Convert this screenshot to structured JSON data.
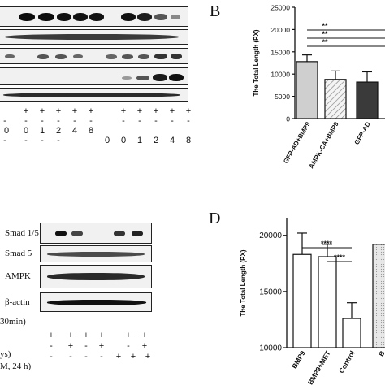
{
  "panel_letters": {
    "b": "B",
    "d": "D"
  },
  "panel_a": {
    "row_signs": [
      "+",
      "+",
      "+",
      "+",
      "+",
      "+",
      "+",
      "+",
      "+",
      "+"
    ],
    "row_dashes": [
      "-",
      "-",
      "-",
      "-",
      "-",
      "-",
      "-",
      "-",
      "-",
      "-",
      "-",
      "-",
      "-",
      "-",
      "-"
    ],
    "times": [
      "0",
      "0",
      "1",
      "2",
      "4",
      "8",
      "0",
      "0",
      "1",
      "2",
      "4",
      "8"
    ]
  },
  "panel_c": {
    "labels": [
      "Smad 1/5",
      "Smad 5",
      "AMPK",
      "β-actin"
    ],
    "conditions": [
      "30min)",
      "ys)",
      "M, 24 h)"
    ],
    "row1": [
      "+",
      "+",
      "+",
      "+",
      "+",
      "+"
    ],
    "row2": [
      "-",
      "+",
      "-",
      "+",
      "-",
      "+"
    ],
    "row3": [
      "-",
      "-",
      "-",
      "-",
      "+",
      "+",
      "+"
    ]
  },
  "chart_data": [
    {
      "type": "bar",
      "ylabel": "The Total Length (PX)",
      "categories": [
        "GFP-AD+BMP9",
        "AMPK-CA+BMP9",
        "GFP-AD"
      ],
      "values": [
        12800,
        8800,
        8200
      ],
      "errors": [
        1500,
        1900,
        2300
      ],
      "ylim": [
        0,
        25000
      ],
      "yticks": [
        "0",
        "5000",
        "10000",
        "15000",
        "20000",
        "25000"
      ],
      "significance": [
        "**",
        "**",
        "**"
      ]
    },
    {
      "type": "bar",
      "ylabel": "The Total Length (PX)",
      "categories": [
        "BMP9",
        "BMP9+MET",
        "Control",
        "B"
      ],
      "values": [
        18300,
        18100,
        12600,
        19200
      ],
      "errors": [
        1900,
        1100,
        1400,
        0
      ],
      "ylim": [
        10000,
        21500
      ],
      "yticks": [
        "10000",
        "15000",
        "20000"
      ],
      "significance": [
        "****",
        "****"
      ]
    }
  ]
}
